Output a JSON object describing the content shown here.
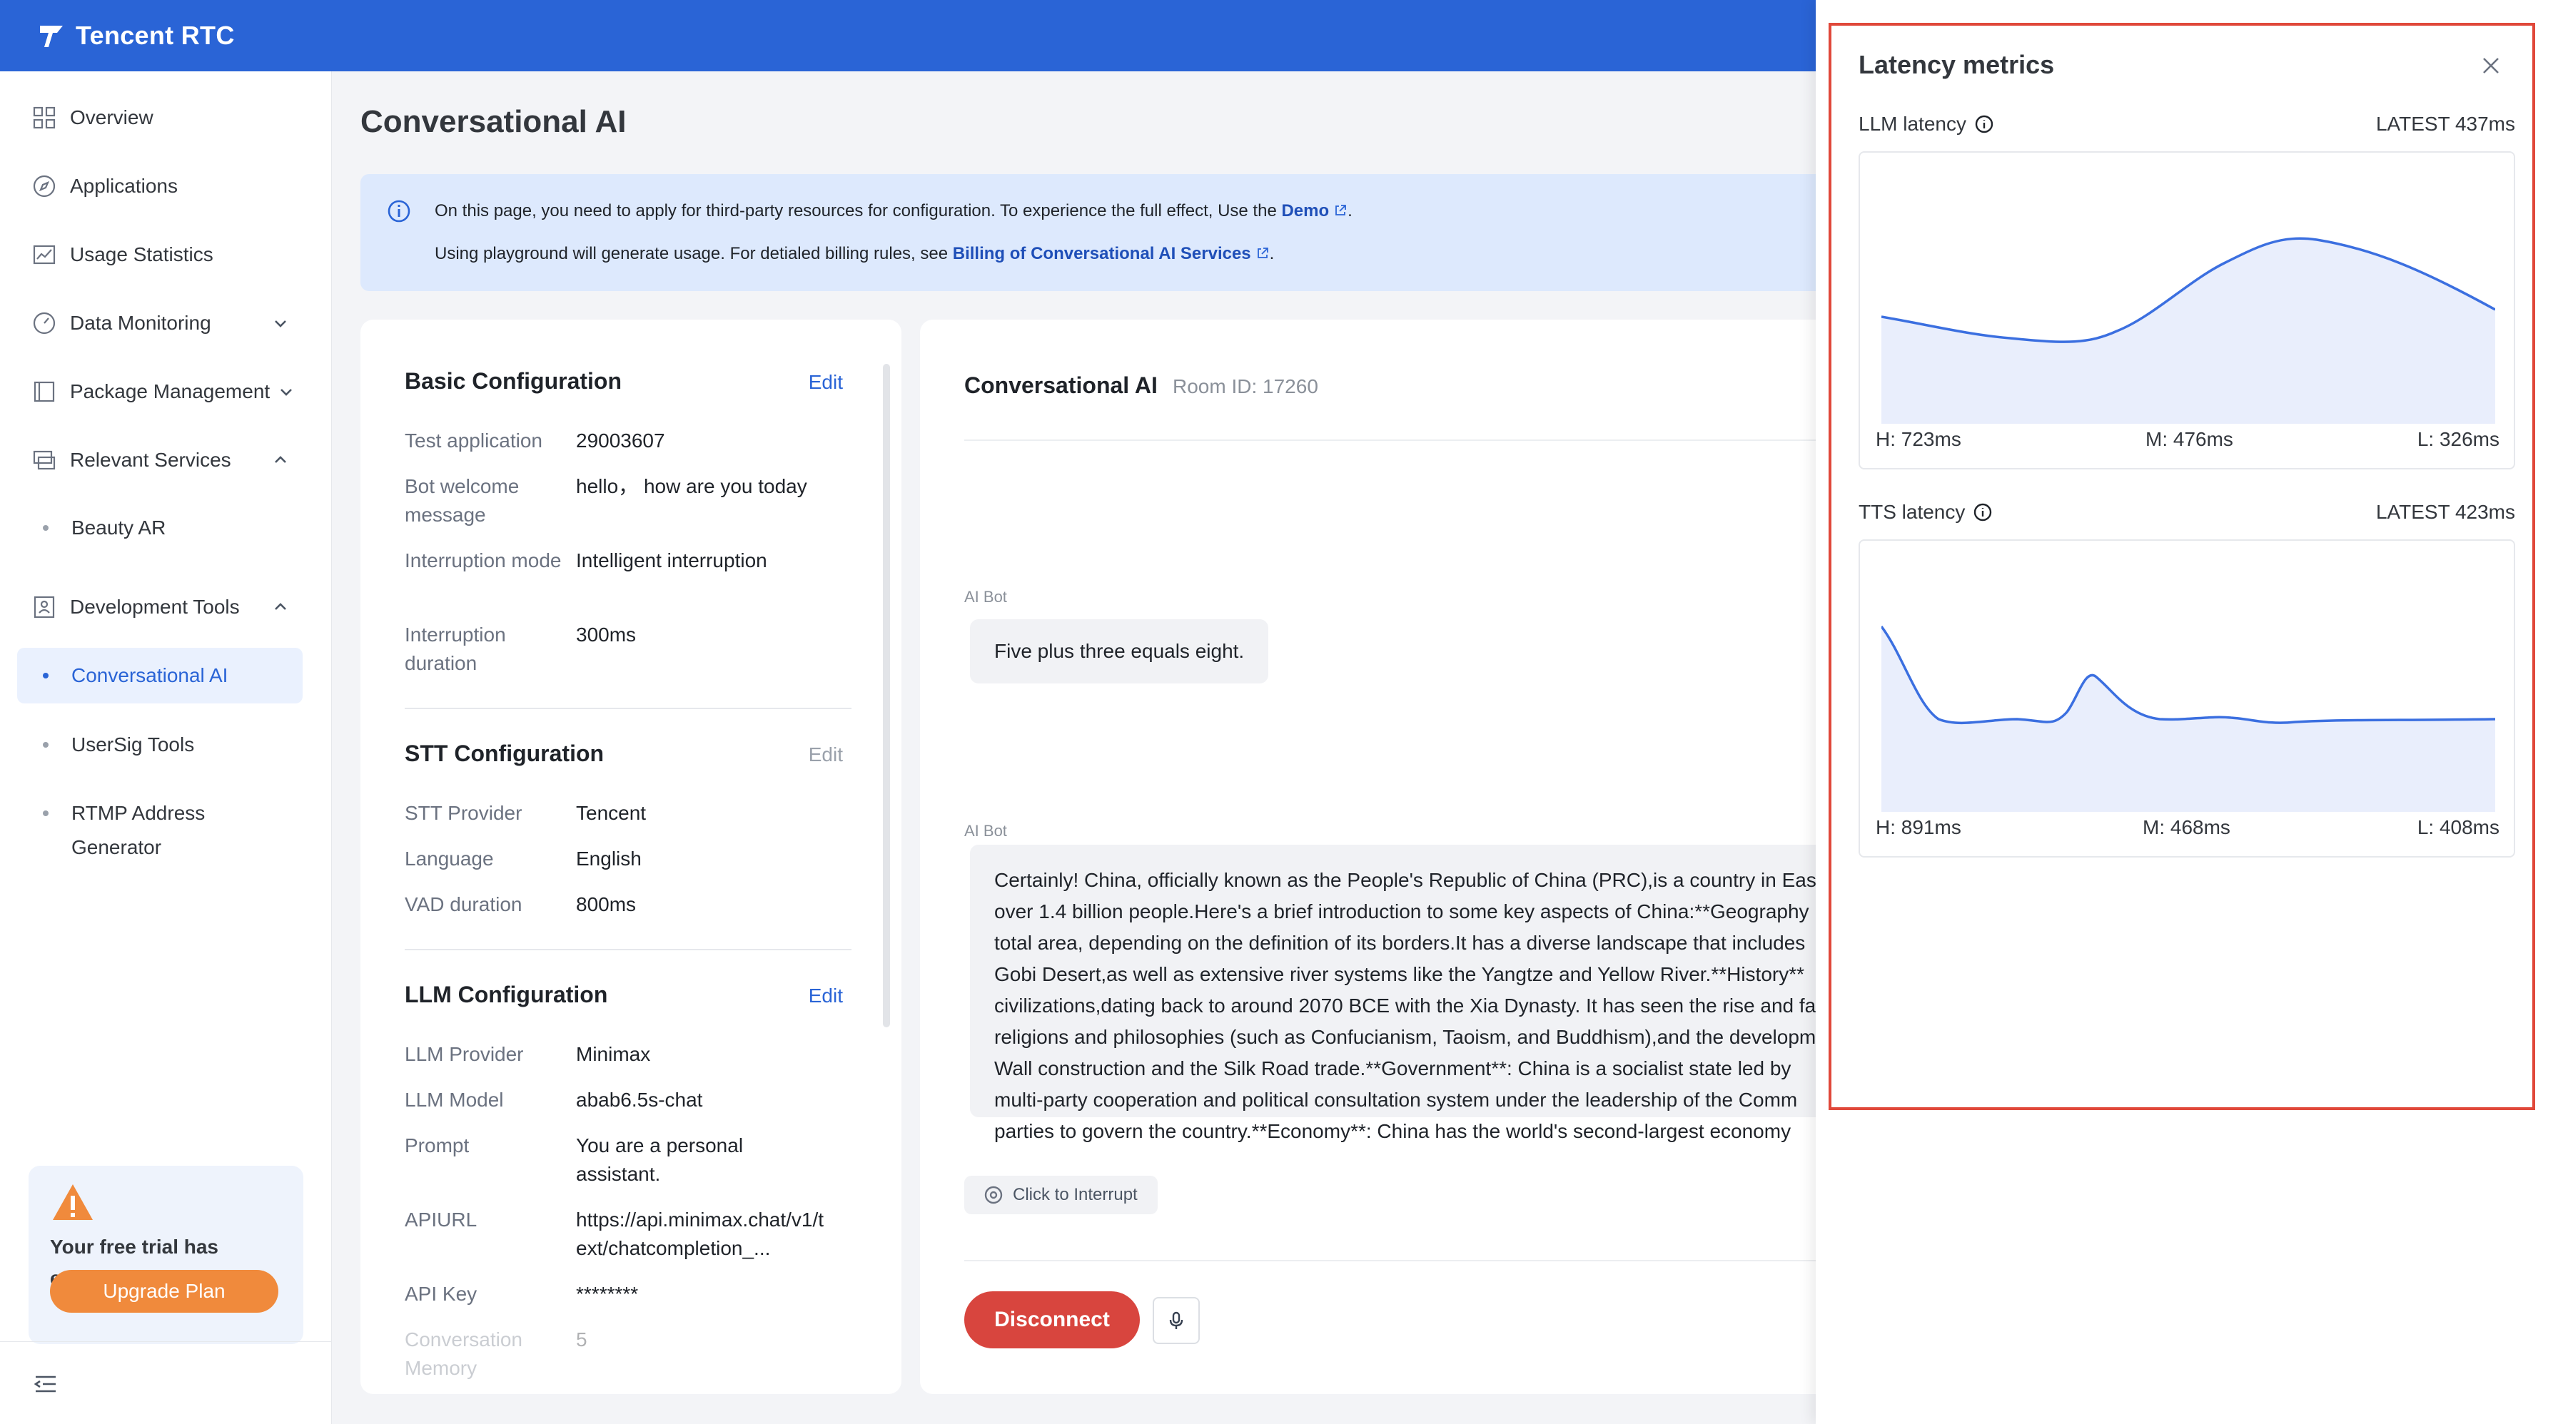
{
  "app": {
    "brand": "Tencent RTC"
  },
  "sidebar": {
    "items": [
      {
        "label": "Overview",
        "icon": "grid-icon"
      },
      {
        "label": "Applications",
        "icon": "compass-icon"
      },
      {
        "label": "Usage Statistics",
        "icon": "chart-icon"
      },
      {
        "label": "Data Monitoring",
        "icon": "gauge-icon"
      },
      {
        "label": "Package Management",
        "icon": "package-icon"
      },
      {
        "label": "Relevant Services",
        "icon": "services-icon"
      },
      {
        "label": "Development Tools",
        "icon": "dev-tools-icon"
      }
    ],
    "sub_items": {
      "beauty_ar": "Beauty AR",
      "conversational_ai": "Conversational AI",
      "usersig_tools": "UserSig Tools",
      "rtmp_line1": "RTMP Address",
      "rtmp_line2": "Generator"
    },
    "trial": {
      "message": "Your free trial has ended.",
      "upgrade_label": "Upgrade Plan"
    }
  },
  "main": {
    "title": "Conversational AI",
    "notice": {
      "line1_prefix": "On this page, you need to apply for third-party resources for configuration. To experience the full effect, Use the ",
      "line1_link": "Demo",
      "line1_suffix": ".",
      "line2_prefix": "Using playground will generate usage. For detialed billing rules, see ",
      "line2_link": "Billing of Conversational AI Services",
      "line2_suffix": "."
    },
    "config": {
      "basic": {
        "title": "Basic Configuration",
        "edit": "Edit",
        "rows": [
          {
            "label": "Test application",
            "value": "29003607"
          },
          {
            "label": "Bot welcome message",
            "value": "hello， how are you today"
          },
          {
            "label": "Interruption mode",
            "value": "Intelligent interruption"
          },
          {
            "label": "Interruption duration",
            "value": "300ms"
          }
        ]
      },
      "stt": {
        "title": "STT Configuration",
        "edit": "Edit",
        "rows": [
          {
            "label": "STT Provider",
            "value": "Tencent"
          },
          {
            "label": "Language",
            "value": "English"
          },
          {
            "label": "VAD duration",
            "value": "800ms"
          }
        ]
      },
      "llm": {
        "title": "LLM Configuration",
        "edit": "Edit",
        "rows": [
          {
            "label": "LLM Provider",
            "value": "Minimax"
          },
          {
            "label": "LLM Model",
            "value": "abab6.5s-chat"
          },
          {
            "label": "Prompt",
            "value": "You are a personal assistant."
          },
          {
            "label": "APIURL",
            "value": "https://api.minimax.chat/v1/text/chatcompletion_..."
          },
          {
            "label": "API Key",
            "value": "********"
          },
          {
            "label": "Conversation Memory",
            "value": "5"
          }
        ]
      }
    },
    "chat": {
      "title": "Conversational AI",
      "room_id": "Room ID: 17260",
      "messages": [
        {
          "sender": "AI Bot",
          "text": "Five plus three equals eight."
        },
        {
          "sender": "AI Bot",
          "lines": [
            "Certainly! China, officially known as the People's Republic of China (PRC),is a country in East",
            "over 1.4 billion people.Here's a brief introduction to some key aspects of China:**Geography",
            "total area, depending on the definition of its borders.It has a diverse landscape that includes",
            "Gobi Desert,as well as extensive river systems like the Yangtze and Yellow River.**History**",
            "civilizations,dating back to around 2070 BCE with the Xia Dynasty. It has seen the rise and fa",
            "religions and philosophies (such as Confucianism, Taoism, and Buddhism),and the developm",
            "Wall construction and the Silk Road trade.**Government**: China is a socialist state led by",
            "multi-party cooperation and political consultation system under the leadership of the Comm",
            "parties to govern the country.**Economy**: China has the world's second-largest economy"
          ]
        }
      ],
      "interrupt_label": "Click to Interrupt",
      "disconnect_label": "Disconnect"
    }
  },
  "drawer": {
    "title": "Latency metrics",
    "llm": {
      "label": "LLM latency",
      "latest": "LATEST 437ms",
      "high": "H: 723ms",
      "mid": "M: 476ms",
      "low": "L: 326ms"
    },
    "tts": {
      "label": "TTS latency",
      "latest": "LATEST 423ms",
      "high": "H: 891ms",
      "mid": "M: 468ms",
      "low": "L: 408ms"
    }
  },
  "colors": {
    "brand_blue": "#2a64d6",
    "danger": "#d8453e",
    "accent_orange": "#f08a3c",
    "chart_line": "#3b6fe0",
    "chart_fill": "#e9eefc"
  }
}
